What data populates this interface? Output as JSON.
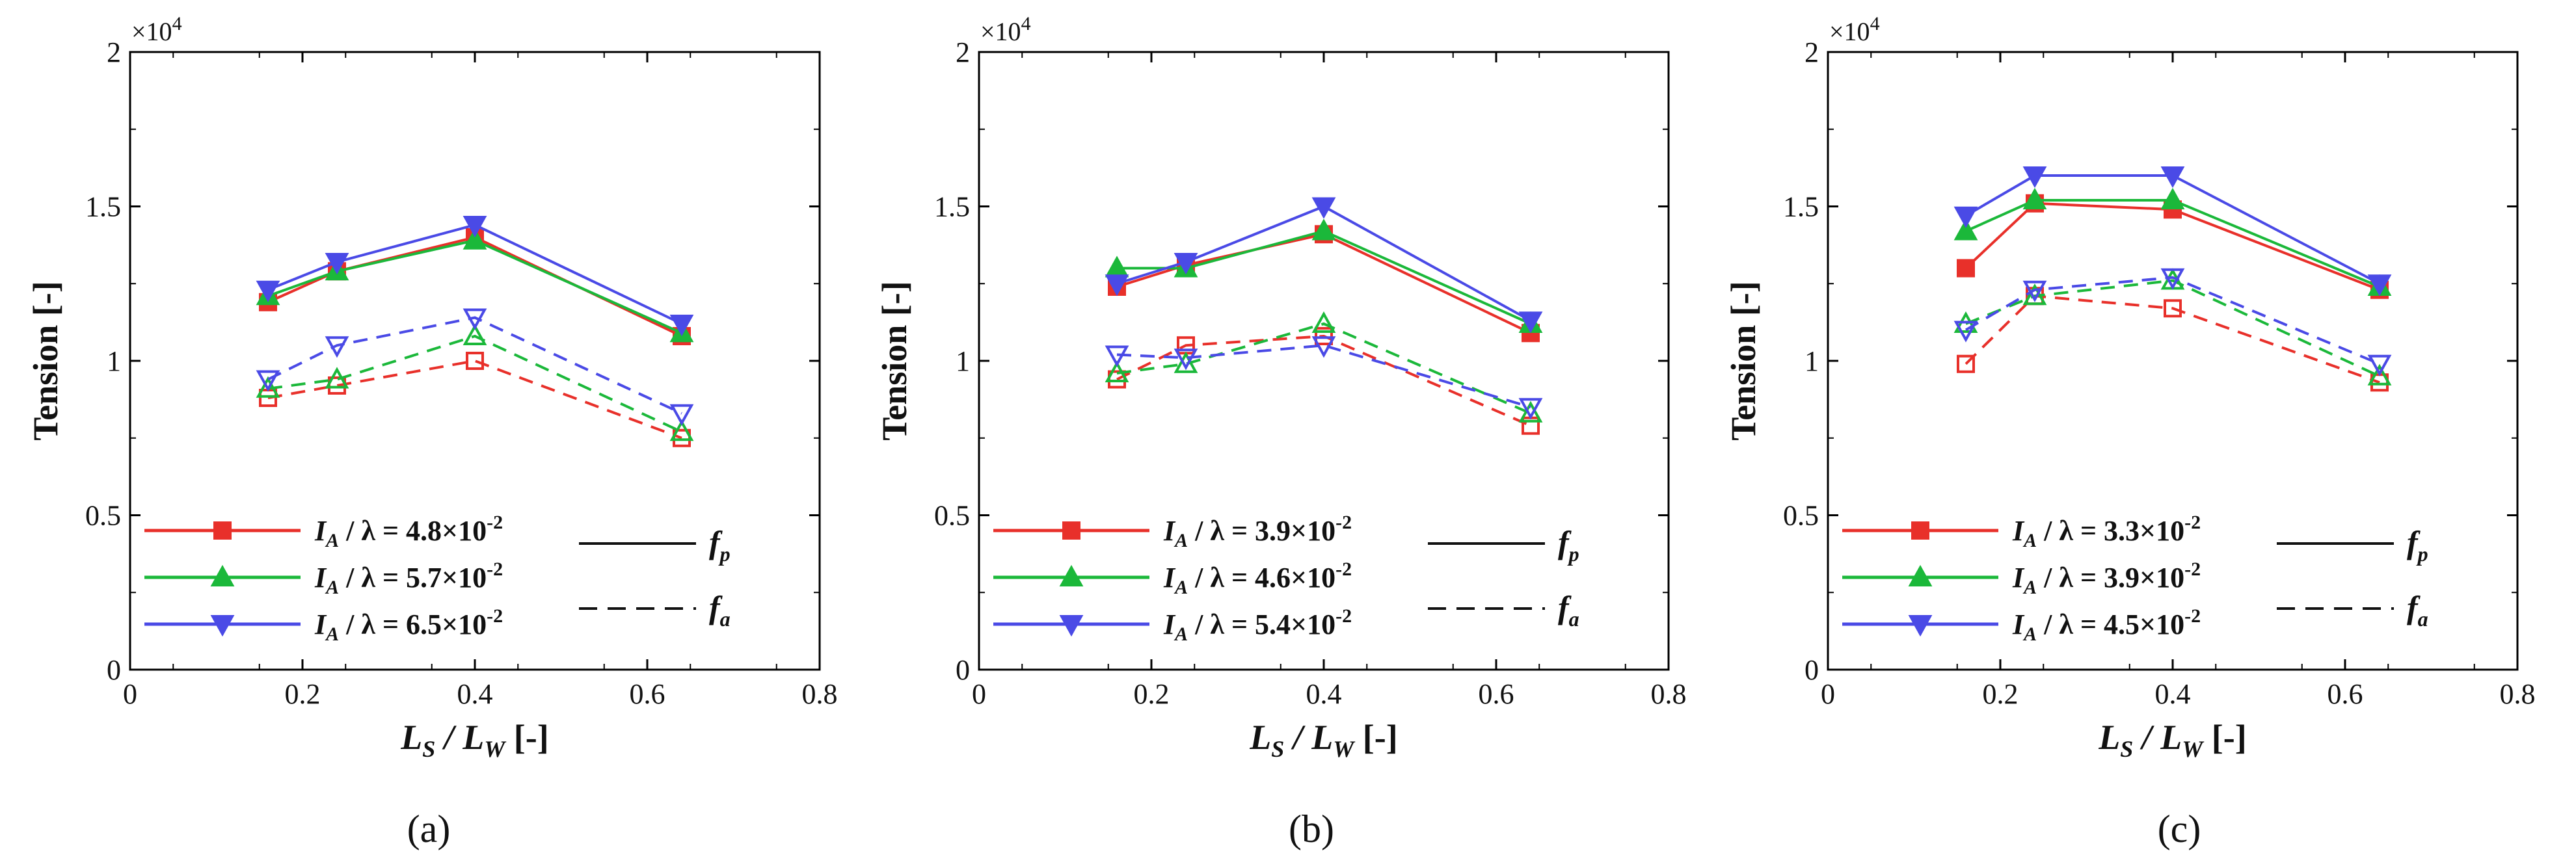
{
  "chart_data": [
    {
      "type": "line",
      "panel_label": "(a)",
      "ylabel": "Tension [-]",
      "xlabel_main": "L",
      "xlabel_sub1": "S",
      "xlabel_mid": " / L",
      "xlabel_sub2": "W",
      "xlabel_unit": " [-]",
      "y_multiplier": "×10",
      "y_multiplier_exp": "4",
      "xlim": [
        0,
        0.8
      ],
      "ylim": [
        0,
        2
      ],
      "xticks": [
        "0",
        "0.2",
        "0.4",
        "0.6",
        "0.8"
      ],
      "yticks": [
        "0",
        "0.5",
        "1",
        "1.5",
        "2"
      ],
      "x": [
        0.16,
        0.24,
        0.4,
        0.64
      ],
      "series": [
        {
          "name": "IA / λ = 4.8×10^-2",
          "label_prefix": "I",
          "label_sub": "A",
          "label_mid": " / λ = 4.8×10",
          "label_exp": "-2",
          "color": "#e8302a",
          "marker": "square",
          "fp": [
            1.19,
            1.29,
            1.4,
            1.08
          ],
          "fa": [
            0.88,
            0.92,
            1.0,
            0.75
          ]
        },
        {
          "name": "IA / λ = 5.7×10^-2",
          "label_prefix": "I",
          "label_sub": "A",
          "label_mid": " / λ = 5.7×10",
          "label_exp": "-2",
          "color": "#1bb83a",
          "marker": "triangle-up",
          "fp": [
            1.21,
            1.29,
            1.39,
            1.09
          ],
          "fa": [
            0.91,
            0.94,
            1.08,
            0.77
          ]
        },
        {
          "name": "IA / λ = 6.5×10^-2",
          "label_prefix": "I",
          "label_sub": "A",
          "label_mid": " / λ = 6.5×10",
          "label_exp": "-2",
          "color": "#4a4ae6",
          "marker": "triangle-down",
          "fp": [
            1.23,
            1.32,
            1.44,
            1.12
          ],
          "fa": [
            0.94,
            1.05,
            1.14,
            0.83
          ]
        }
      ],
      "style_legend": {
        "solid_label": "f",
        "solid_sub": "p",
        "dashed_label": "f",
        "dashed_sub": "a"
      }
    },
    {
      "type": "line",
      "panel_label": "(b)",
      "ylabel": "Tension [-]",
      "xlabel_main": "L",
      "xlabel_sub1": "S",
      "xlabel_mid": " / L",
      "xlabel_sub2": "W",
      "xlabel_unit": " [-]",
      "y_multiplier": "×10",
      "y_multiplier_exp": "4",
      "xlim": [
        0,
        0.8
      ],
      "ylim": [
        0,
        2
      ],
      "xticks": [
        "0",
        "0.2",
        "0.4",
        "0.6",
        "0.8"
      ],
      "yticks": [
        "0",
        "0.5",
        "1",
        "1.5",
        "2"
      ],
      "x": [
        0.16,
        0.24,
        0.4,
        0.64
      ],
      "series": [
        {
          "name": "IA / λ = 3.9×10^-2",
          "label_prefix": "I",
          "label_sub": "A",
          "label_mid": " / λ = 3.9×10",
          "label_exp": "-2",
          "color": "#e8302a",
          "marker": "square",
          "fp": [
            1.24,
            1.31,
            1.41,
            1.09
          ],
          "fa": [
            0.94,
            1.05,
            1.08,
            0.79
          ]
        },
        {
          "name": "IA / λ = 4.6×10^-2",
          "label_prefix": "I",
          "label_sub": "A",
          "label_mid": " / λ = 4.6×10",
          "label_exp": "-2",
          "color": "#1bb83a",
          "marker": "triangle-up",
          "fp": [
            1.3,
            1.3,
            1.42,
            1.12
          ],
          "fa": [
            0.96,
            0.99,
            1.12,
            0.83
          ]
        },
        {
          "name": "IA / λ = 5.4×10^-2",
          "label_prefix": "I",
          "label_sub": "A",
          "label_mid": " / λ = 5.4×10",
          "label_exp": "-2",
          "color": "#4a4ae6",
          "marker": "triangle-down",
          "fp": [
            1.25,
            1.32,
            1.5,
            1.13
          ],
          "fa": [
            1.02,
            1.01,
            1.05,
            0.85
          ]
        }
      ],
      "style_legend": {
        "solid_label": "f",
        "solid_sub": "p",
        "dashed_label": "f",
        "dashed_sub": "a"
      }
    },
    {
      "type": "line",
      "panel_label": "(c)",
      "ylabel": "Tension [-]",
      "xlabel_main": "L",
      "xlabel_sub1": "S",
      "xlabel_mid": " / L",
      "xlabel_sub2": "W",
      "xlabel_unit": " [-]",
      "y_multiplier": "×10",
      "y_multiplier_exp": "4",
      "xlim": [
        0,
        0.8
      ],
      "ylim": [
        0,
        2
      ],
      "xticks": [
        "0",
        "0.2",
        "0.4",
        "0.6",
        "0.8"
      ],
      "yticks": [
        "0",
        "0.5",
        "1",
        "1.5",
        "2"
      ],
      "x": [
        0.16,
        0.24,
        0.4,
        0.64
      ],
      "series": [
        {
          "name": "IA / λ = 3.3×10^-2",
          "label_prefix": "I",
          "label_sub": "A",
          "label_mid": " / λ = 3.3×10",
          "label_exp": "-2",
          "color": "#e8302a",
          "marker": "square",
          "fp": [
            1.3,
            1.51,
            1.49,
            1.23
          ],
          "fa": [
            0.99,
            1.21,
            1.17,
            0.93
          ]
        },
        {
          "name": "IA / λ = 3.9×10^-2",
          "label_prefix": "I",
          "label_sub": "A",
          "label_mid": " / λ = 3.9×10",
          "label_exp": "-2",
          "color": "#1bb83a",
          "marker": "triangle-up",
          "fp": [
            1.42,
            1.52,
            1.52,
            1.24
          ],
          "fa": [
            1.12,
            1.21,
            1.26,
            0.95
          ]
        },
        {
          "name": "IA / λ = 4.5×10^-2",
          "label_prefix": "I",
          "label_sub": "A",
          "label_mid": " / λ = 4.5×10",
          "label_exp": "-2",
          "color": "#4a4ae6",
          "marker": "triangle-down",
          "fp": [
            1.47,
            1.6,
            1.6,
            1.25
          ],
          "fa": [
            1.1,
            1.23,
            1.27,
            0.99
          ]
        }
      ],
      "style_legend": {
        "solid_label": "f",
        "solid_sub": "p",
        "dashed_label": "f",
        "dashed_sub": "a"
      }
    }
  ]
}
